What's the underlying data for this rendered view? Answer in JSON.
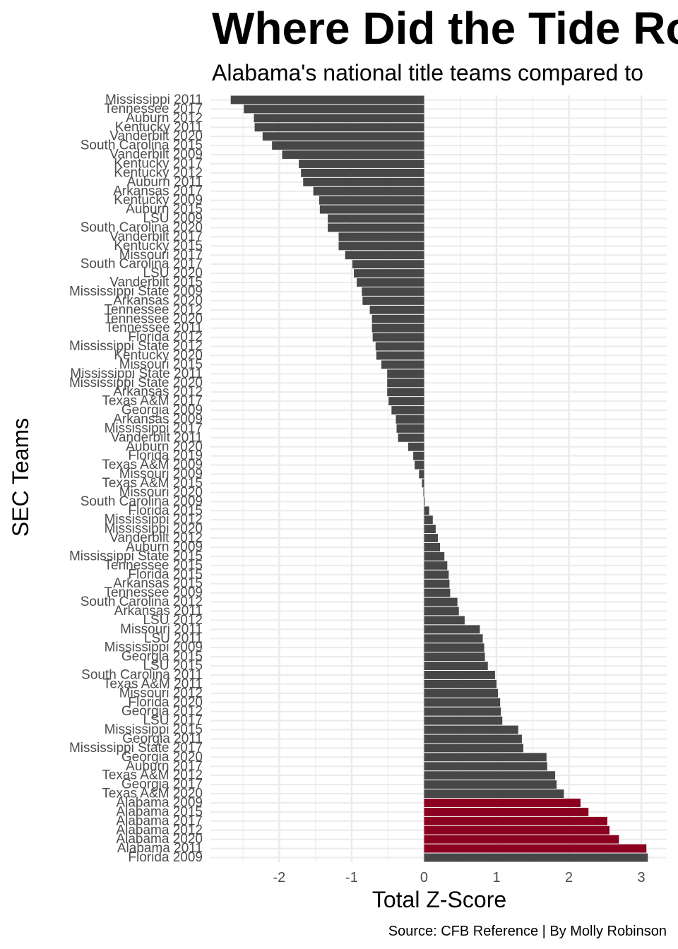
{
  "chart_data": {
    "type": "bar",
    "orientation": "horizontal",
    "title": "Where Did the Tide Ro",
    "subtitle": "Alabama's national title teams compared to",
    "xlabel": "Total Z-Score",
    "ylabel": "SEC Teams",
    "caption": "Source: CFB Reference | By Molly Robinson",
    "xlim": [
      -2.95,
      3.35
    ],
    "xticks": [
      -2,
      -1,
      0,
      1,
      2,
      3
    ],
    "grid": true,
    "colors": {
      "default": "#474747",
      "highlight": "#8B0020"
    },
    "highlight_prefix": "Alabama",
    "categories": [
      "Mississippi 2011",
      "Tennessee 2017",
      "Auburn 2012",
      "Kentucky 2011",
      "Vanderbilt 2020",
      "South Carolina 2015",
      "Vanderbilt 2009",
      "Kentucky 2017",
      "Kentucky 2012",
      "Auburn 2011",
      "Arkansas 2017",
      "Kentucky 2009",
      "Auburn 2015",
      "LSU 2009",
      "South Carolina 2020",
      "Vanderbilt 2017",
      "Kentucky 2015",
      "Missouri 2017",
      "South Carolina 2017",
      "LSU 2020",
      "Vanderbilt 2015",
      "Mississippi State 2009",
      "Arkansas 2020",
      "Tennessee 2012",
      "Tennessee 2020",
      "Tennessee 2011",
      "Florida 2012",
      "Mississippi State 2012",
      "Kentucky 2020",
      "Missouri 2015",
      "Mississippi State 2011",
      "Mississippi State 2020",
      "Arkansas 2012",
      "Texas A&M 2017",
      "Georgia 2009",
      "Arkansas 2009",
      "Mississippi 2017",
      "Vanderbilt 2011",
      "Auburn 2020",
      "Florida 2019",
      "Texas A&M 2009",
      "Missouri 2009",
      "Texas A&M 2015",
      "Missouri 2020",
      "South Carolina 2009",
      "Florida 2015",
      "Mississippi 2012",
      "Mississippi 2020",
      "Vanderbilt 2012",
      "Auburn 2009",
      "Mississippi State 2015",
      "Tennessee 2015",
      "Florida 2015",
      "Arkansas 2015",
      "Tennessee 2009",
      "South Carolina 2012",
      "Arkansas 2011",
      "LSU 2012",
      "Missouri 2011",
      "LSU 2011",
      "Mississippi 2009",
      "Georgia 2015",
      "LSU 2015",
      "South Carolina 2011",
      "Texas A&M 2011",
      "Missouri 2012",
      "Florida 2020",
      "Georgia 2012",
      "LSU 2017",
      "Mississippi 2015",
      "Georgia 2011",
      "Mississippi State 2017",
      "Georgia 2020",
      "Auburn 2017",
      "Texas A&M 2012",
      "Georgia 2017",
      "Texas A&M 2020",
      "Alabama 2009",
      "Alabama 2015",
      "Alabama 2017",
      "Alabama 2012",
      "Alabama 2020",
      "Alabama 2011",
      "Florida 2009"
    ],
    "values": [
      -2.67,
      -2.49,
      -2.35,
      -2.34,
      -2.23,
      -2.1,
      -1.96,
      -1.73,
      -1.7,
      -1.67,
      -1.53,
      -1.45,
      -1.44,
      -1.33,
      -1.33,
      -1.18,
      -1.18,
      -1.09,
      -0.99,
      -0.97,
      -0.93,
      -0.86,
      -0.85,
      -0.75,
      -0.72,
      -0.72,
      -0.71,
      -0.67,
      -0.66,
      -0.59,
      -0.51,
      -0.51,
      -0.51,
      -0.49,
      -0.45,
      -0.39,
      -0.38,
      -0.36,
      -0.22,
      -0.15,
      -0.13,
      -0.07,
      -0.03,
      -0.01,
      0.01,
      0.07,
      0.12,
      0.16,
      0.19,
      0.22,
      0.28,
      0.32,
      0.34,
      0.35,
      0.36,
      0.46,
      0.48,
      0.56,
      0.77,
      0.81,
      0.83,
      0.84,
      0.88,
      0.98,
      1.0,
      1.02,
      1.05,
      1.06,
      1.08,
      1.3,
      1.35,
      1.37,
      1.69,
      1.7,
      1.81,
      1.83,
      1.93,
      2.16,
      2.27,
      2.53,
      2.56,
      2.69,
      3.07,
      3.09
    ]
  }
}
